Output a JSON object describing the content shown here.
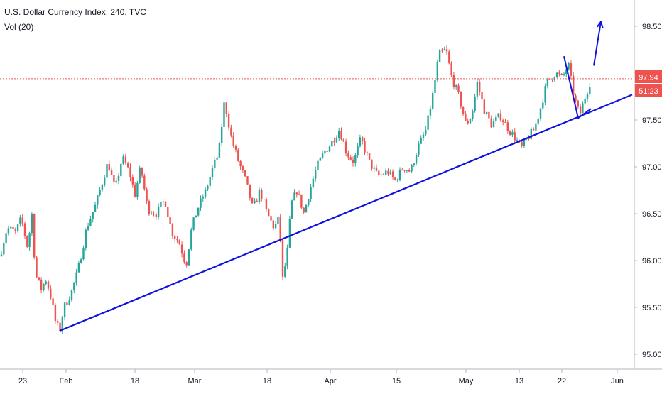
{
  "legend": {
    "title": "U.S. Dollar Currency Index, 240, TVC",
    "volume": "Vol (20)"
  },
  "price_axis": {
    "ticks": [
      "98.50",
      "98.00",
      "97.50",
      "97.00",
      "96.50",
      "96.00",
      "95.50",
      "95.00"
    ],
    "tick_values": [
      98.5,
      98.0,
      97.5,
      97.0,
      96.5,
      96.0,
      95.5,
      95.0
    ],
    "last_price_label": "97.94",
    "countdown_label": "51:23"
  },
  "time_axis": {
    "ticks": [
      "23",
      "Feb",
      "18",
      "Mar",
      "18",
      "Apr",
      "15",
      "May",
      "13",
      "22",
      "Jun"
    ]
  },
  "colors": {
    "up": "#26a69a",
    "down": "#ef5350",
    "drawing": "#1010e0",
    "price_line": "#ef5350",
    "countdown_bg": "#ef5350",
    "axis_text": "#131722"
  },
  "chart_data": {
    "type": "candlestick",
    "title": "U.S. Dollar Currency Index, 240, TVC",
    "ylim": [
      94.85,
      98.6
    ],
    "last_price": 97.94,
    "path_anchors": [
      [
        0,
        96.05
      ],
      [
        10,
        96.35
      ],
      [
        22,
        96.3
      ],
      [
        30,
        96.45
      ],
      [
        40,
        96.1
      ],
      [
        44,
        96.6
      ],
      [
        50,
        95.85
      ],
      [
        58,
        95.7
      ],
      [
        65,
        95.8
      ],
      [
        72,
        95.6
      ],
      [
        78,
        95.35
      ],
      [
        84,
        95.25
      ],
      [
        90,
        95.5
      ],
      [
        100,
        95.65
      ],
      [
        110,
        95.9
      ],
      [
        122,
        96.35
      ],
      [
        135,
        96.6
      ],
      [
        152,
        97.05
      ],
      [
        162,
        96.75
      ],
      [
        172,
        97.1
      ],
      [
        182,
        96.95
      ],
      [
        190,
        96.7
      ],
      [
        198,
        97.0
      ],
      [
        208,
        96.55
      ],
      [
        220,
        96.5
      ],
      [
        232,
        96.65
      ],
      [
        242,
        96.3
      ],
      [
        252,
        96.2
      ],
      [
        262,
        95.95
      ],
      [
        270,
        96.35
      ],
      [
        278,
        96.55
      ],
      [
        290,
        96.75
      ],
      [
        300,
        97.0
      ],
      [
        308,
        97.15
      ],
      [
        316,
        97.7
      ],
      [
        326,
        97.3
      ],
      [
        336,
        97.05
      ],
      [
        346,
        96.85
      ],
      [
        356,
        96.55
      ],
      [
        366,
        96.75
      ],
      [
        376,
        96.5
      ],
      [
        386,
        96.35
      ],
      [
        393,
        96.45
      ],
      [
        398,
        95.8
      ],
      [
        404,
        96.05
      ],
      [
        410,
        96.6
      ],
      [
        418,
        96.75
      ],
      [
        428,
        96.5
      ],
      [
        436,
        96.75
      ],
      [
        446,
        97.0
      ],
      [
        456,
        97.15
      ],
      [
        466,
        97.25
      ],
      [
        478,
        97.4
      ],
      [
        488,
        97.15
      ],
      [
        498,
        97.05
      ],
      [
        508,
        97.3
      ],
      [
        520,
        97.05
      ],
      [
        532,
        96.9
      ],
      [
        546,
        96.95
      ],
      [
        556,
        96.85
      ],
      [
        568,
        97.0
      ],
      [
        578,
        96.95
      ],
      [
        588,
        97.2
      ],
      [
        600,
        97.4
      ],
      [
        610,
        97.8
      ],
      [
        618,
        98.2
      ],
      [
        628,
        98.25
      ],
      [
        636,
        97.95
      ],
      [
        646,
        97.75
      ],
      [
        656,
        97.45
      ],
      [
        664,
        97.55
      ],
      [
        672,
        97.9
      ],
      [
        682,
        97.6
      ],
      [
        692,
        97.45
      ],
      [
        704,
        97.55
      ],
      [
        716,
        97.4
      ],
      [
        726,
        97.3
      ],
      [
        734,
        97.2
      ],
      [
        742,
        97.3
      ],
      [
        752,
        97.4
      ],
      [
        760,
        97.6
      ],
      [
        770,
        97.9
      ],
      [
        782,
        98.0
      ],
      [
        792,
        97.95
      ],
      [
        800,
        98.1
      ],
      [
        808,
        97.75
      ],
      [
        816,
        97.55
      ],
      [
        824,
        97.75
      ],
      [
        832,
        97.94
      ]
    ],
    "annotations": {
      "trendline": {
        "from": [
          84,
          95.25
        ],
        "to": [
          890,
          97.77
        ]
      },
      "flag": [
        [
          794,
          98.18
        ],
        [
          814,
          97.52
        ],
        [
          832,
          97.62
        ]
      ],
      "arrow": {
        "from": [
          836,
          98.08
        ],
        "to": [
          846,
          98.55
        ]
      }
    },
    "grid": false
  }
}
